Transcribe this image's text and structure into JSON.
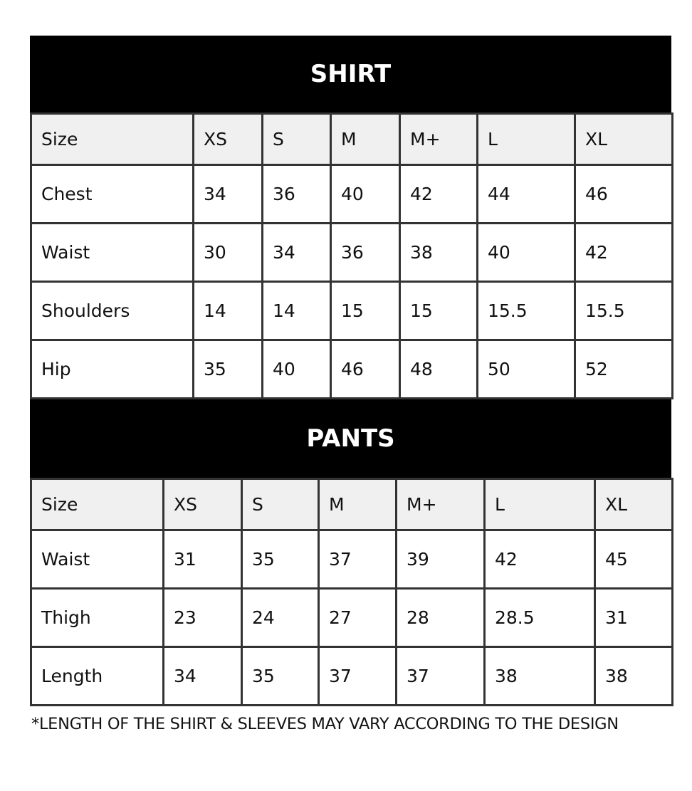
{
  "shirt": {
    "title": "SHIRT",
    "header": [
      "Size",
      "XS",
      "S",
      "M",
      "M+",
      "L",
      "XL"
    ],
    "rows": [
      [
        "Chest",
        "34",
        "36",
        "40",
        "42",
        "44",
        "46"
      ],
      [
        "Waist",
        "30",
        "34",
        "36",
        "38",
        "40",
        "42"
      ],
      [
        "Shoulders",
        "14",
        "14",
        "15",
        "15",
        "15.5",
        "15.5"
      ],
      [
        "Hip",
        "35",
        "40",
        "46",
        "48",
        "50",
        "52"
      ]
    ]
  },
  "pants": {
    "title": "PANTS",
    "header": [
      "Size",
      "XS",
      "S",
      "M",
      "M+",
      "L",
      "XL"
    ],
    "rows": [
      [
        "Waist",
        "31",
        "35",
        "37",
        "39",
        "42",
        "45"
      ],
      [
        "Thigh",
        "23",
        "24",
        "27",
        "28",
        "28.5",
        "31"
      ],
      [
        "Length",
        "34",
        "35",
        "37",
        "37",
        "38",
        "38"
      ]
    ]
  },
  "footnote": "*LENGTH OF THE SHIRT & SLEEVES MAY VARY ACCORDING TO THE DESIGN",
  "colors": {
    "title_bg": "#000000",
    "header_bg": "#f0f0f0",
    "border": "#333333"
  }
}
